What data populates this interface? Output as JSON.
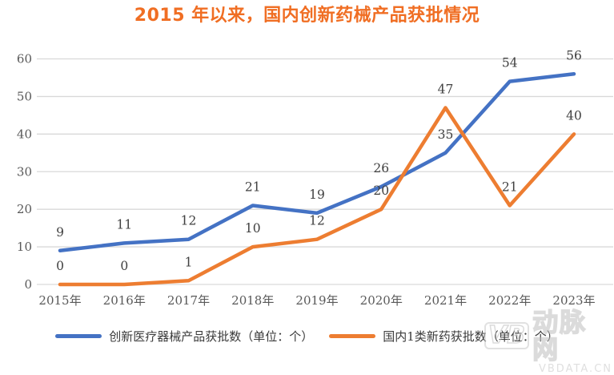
{
  "title": "2015 年以来，国内创新药械产品获批情况",
  "chart_data": {
    "type": "line",
    "categories": [
      "2015年",
      "2016年",
      "2017年",
      "2018年",
      "2019年",
      "2020年",
      "2021年",
      "2022年",
      "2023年"
    ],
    "series": [
      {
        "name": "创新医疗器械产品获批数（单位：个）",
        "color": "#4472C4",
        "values": [
          9,
          11,
          12,
          21,
          19,
          26,
          35,
          54,
          56
        ]
      },
      {
        "name": "国内1类新药获批数（单位：个）",
        "color": "#ED7D31",
        "values": [
          0,
          0,
          1,
          10,
          12,
          20,
          47,
          21,
          40
        ]
      }
    ],
    "ylim": [
      0,
      60
    ],
    "yticks": [
      0,
      10,
      20,
      30,
      40,
      50,
      60
    ],
    "grid": true,
    "legend_position": "bottom",
    "title": "2015 年以来，国内创新药械产品获批情况"
  },
  "colors": {
    "title": "#f06e23",
    "series_blue": "#4472C4",
    "series_orange": "#ED7D31",
    "gridline": "#D9D9D9",
    "tick_label": "#595959",
    "data_label": "#404040",
    "legend_text": "#3b3b3b"
  },
  "watermark": {
    "logo": "VB",
    "text": "动脉网",
    "subtext": "VBDATA.CN"
  }
}
